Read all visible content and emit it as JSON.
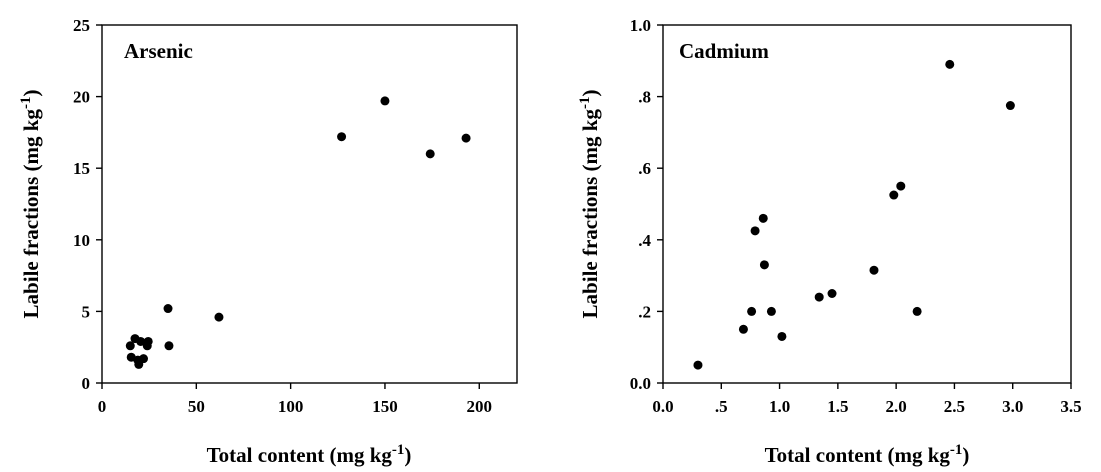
{
  "chart_data": [
    {
      "type": "scatter",
      "title": "Arsenic",
      "xlabel": "Total content (mg kg",
      "xlabel_sup": "-1",
      "xlabel_end": ")",
      "ylabel": "Labile fractions (mg kg",
      "ylabel_sup": "-1",
      "ylabel_end": ")",
      "xlim": [
        0,
        220
      ],
      "ylim": [
        0,
        25
      ],
      "xticks": [
        0,
        50,
        100,
        150,
        200
      ],
      "xtick_labels": [
        "0",
        "50",
        "100",
        "150",
        "200"
      ],
      "yticks": [
        0,
        5,
        10,
        15,
        20,
        25
      ],
      "ytick_labels": [
        "0",
        "5",
        "10",
        "15",
        "20",
        "25"
      ],
      "grid": false,
      "series": [
        {
          "color": "#000000",
          "points": [
            {
              "x": 15,
              "y": 2.6
            },
            {
              "x": 15.5,
              "y": 1.8
            },
            {
              "x": 17.5,
              "y": 3.1
            },
            {
              "x": 19,
              "y": 1.6
            },
            {
              "x": 19.5,
              "y": 1.3
            },
            {
              "x": 20.5,
              "y": 2.9
            },
            {
              "x": 22,
              "y": 1.7
            },
            {
              "x": 24,
              "y": 2.6
            },
            {
              "x": 24.5,
              "y": 2.9
            },
            {
              "x": 35,
              "y": 5.2
            },
            {
              "x": 35.5,
              "y": 2.6
            },
            {
              "x": 62,
              "y": 4.6
            },
            {
              "x": 127,
              "y": 17.2
            },
            {
              "x": 150,
              "y": 19.7
            },
            {
              "x": 174,
              "y": 16.0
            },
            {
              "x": 193,
              "y": 17.1
            }
          ]
        }
      ]
    },
    {
      "type": "scatter",
      "title": "Cadmium",
      "xlabel": "Total content (mg kg",
      "xlabel_sup": "-1",
      "xlabel_end": ")",
      "ylabel": "Labile fractions (mg kg",
      "ylabel_sup": "-1",
      "ylabel_end": ")",
      "xlim": [
        0,
        3.5
      ],
      "ylim": [
        0,
        1.0
      ],
      "xticks": [
        0,
        0.5,
        1.0,
        1.5,
        2.0,
        2.5,
        3.0,
        3.5
      ],
      "xtick_labels": [
        "0.0",
        ".5",
        "1.0",
        "1.5",
        "2.0",
        "2.5",
        "3.0",
        "3.5"
      ],
      "yticks": [
        0,
        0.2,
        0.4,
        0.6,
        0.8,
        1.0
      ],
      "ytick_labels": [
        "0.0",
        ".2",
        ".4",
        ".6",
        ".8",
        "1.0"
      ],
      "grid": false,
      "series": [
        {
          "color": "#000000",
          "points": [
            {
              "x": 0.3,
              "y": 0.05
            },
            {
              "x": 0.69,
              "y": 0.15
            },
            {
              "x": 0.76,
              "y": 0.2
            },
            {
              "x": 0.79,
              "y": 0.425
            },
            {
              "x": 0.86,
              "y": 0.46
            },
            {
              "x": 0.87,
              "y": 0.33
            },
            {
              "x": 0.93,
              "y": 0.2
            },
            {
              "x": 1.02,
              "y": 0.13
            },
            {
              "x": 1.34,
              "y": 0.24
            },
            {
              "x": 1.45,
              "y": 0.25
            },
            {
              "x": 1.81,
              "y": 0.315
            },
            {
              "x": 1.98,
              "y": 0.525
            },
            {
              "x": 2.04,
              "y": 0.55
            },
            {
              "x": 2.18,
              "y": 0.2
            },
            {
              "x": 2.46,
              "y": 0.89
            },
            {
              "x": 2.98,
              "y": 0.775
            }
          ]
        }
      ]
    }
  ]
}
